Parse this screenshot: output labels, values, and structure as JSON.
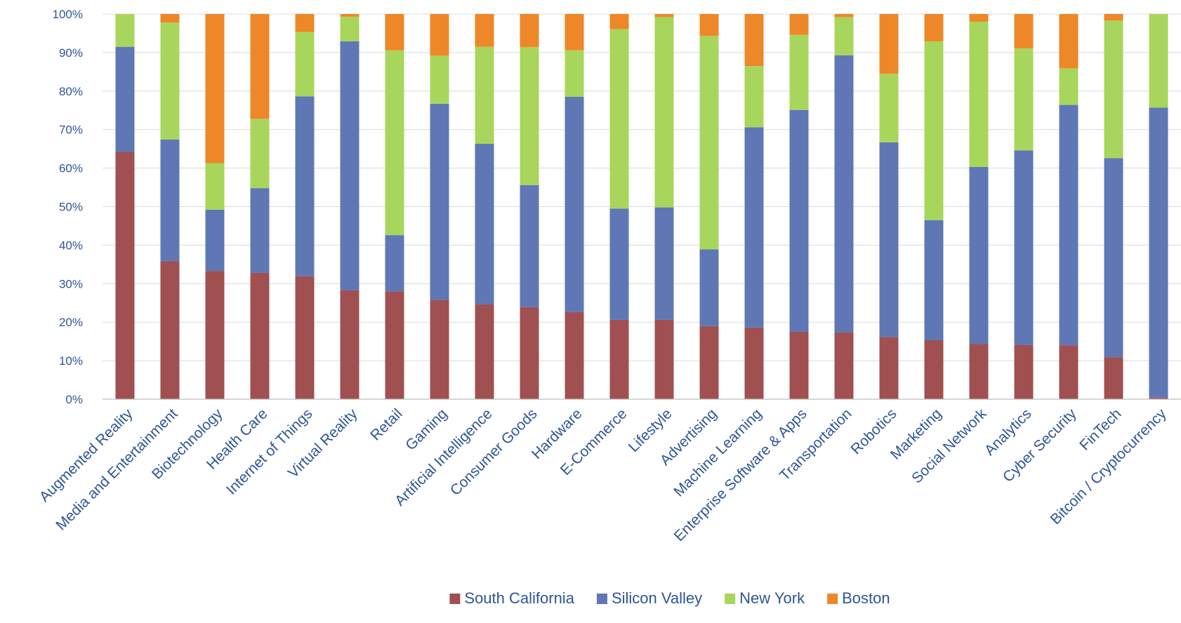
{
  "chart_data": {
    "type": "bar",
    "stacked": true,
    "percent_stacked": true,
    "title": "",
    "xlabel": "",
    "ylabel": "",
    "ylim": [
      0,
      100
    ],
    "y_ticks": [
      "0%",
      "10%",
      "20%",
      "30%",
      "40%",
      "50%",
      "60%",
      "70%",
      "80%",
      "90%",
      "100%"
    ],
    "grid": "horizontal",
    "legend_position": "bottom",
    "categories": [
      "Augmented Reality",
      "Media and Entertainment",
      "Biotechnology",
      "Health Care",
      "Internet of Things",
      "Virtual Reality",
      "Retail",
      "Gaming",
      "Artificial Intelligence",
      "Consumer Goods",
      "Hardware",
      "E-Commerce",
      "Lifestyle",
      "Advertising",
      "Machine Learning",
      "Enterprise Software & Apps",
      "Transportation",
      "Robotics",
      "Marketing",
      "Social Network",
      "Analytics",
      "Cyber Security",
      "FinTech",
      "Bitcoin / Cryptocurrency"
    ],
    "series": [
      {
        "name": "South California",
        "color": "#a05050",
        "values": [
          64.2,
          35.8,
          33.3,
          32.8,
          31.9,
          28.3,
          28.0,
          25.8,
          24.6,
          23.9,
          22.6,
          20.6,
          20.6,
          19.0,
          18.6,
          17.5,
          17.3,
          16.1,
          15.3,
          14.3,
          14.1,
          14.0,
          10.9,
          0.4
        ]
      },
      {
        "name": "Silicon Valley",
        "color": "#5f77b5",
        "values": [
          27.3,
          31.6,
          15.9,
          22.0,
          46.7,
          64.6,
          14.6,
          50.9,
          41.7,
          31.7,
          55.9,
          28.9,
          29.2,
          19.9,
          52.0,
          57.6,
          72.0,
          50.6,
          31.2,
          46.0,
          50.5,
          62.4,
          51.7,
          75.3
        ]
      },
      {
        "name": "New York",
        "color": "#a8d65c",
        "values": [
          8.5,
          30.4,
          12.1,
          18.0,
          16.7,
          6.4,
          48.0,
          12.5,
          25.2,
          35.8,
          12.1,
          46.6,
          49.4,
          55.4,
          15.9,
          19.5,
          9.9,
          17.8,
          46.4,
          37.7,
          26.5,
          9.5,
          35.7,
          24.3
        ]
      },
      {
        "name": "Boston",
        "color": "#ee8727",
        "values": [
          0.0,
          2.2,
          38.7,
          27.2,
          4.7,
          0.7,
          9.4,
          10.8,
          8.5,
          8.6,
          9.4,
          3.9,
          0.8,
          5.7,
          13.5,
          5.4,
          0.8,
          15.5,
          7.1,
          2.0,
          8.9,
          14.1,
          1.7,
          0.0
        ]
      }
    ]
  }
}
